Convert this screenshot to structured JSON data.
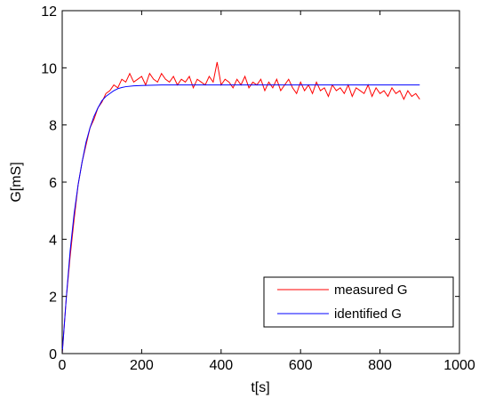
{
  "chart_data": {
    "type": "line",
    "title": "",
    "xlabel": "t[s]",
    "ylabel": "G[mS]",
    "xlim": [
      0,
      1000
    ],
    "ylim": [
      0,
      12
    ],
    "xticks": [
      0,
      200,
      400,
      600,
      800,
      1000
    ],
    "yticks": [
      0,
      2,
      4,
      6,
      8,
      10,
      12
    ],
    "grid": false,
    "legend_position": "bottom-right",
    "series": [
      {
        "name": "measured G",
        "color": "#ff0000",
        "x": [
          0,
          10,
          20,
          30,
          40,
          50,
          60,
          70,
          80,
          90,
          100,
          110,
          120,
          130,
          140,
          150,
          160,
          170,
          180,
          190,
          200,
          210,
          220,
          230,
          240,
          250,
          260,
          270,
          280,
          290,
          300,
          310,
          320,
          330,
          340,
          350,
          360,
          370,
          380,
          390,
          400,
          410,
          420,
          430,
          440,
          450,
          460,
          470,
          480,
          490,
          500,
          510,
          520,
          530,
          540,
          550,
          560,
          570,
          580,
          590,
          600,
          610,
          620,
          630,
          640,
          650,
          660,
          670,
          680,
          690,
          700,
          710,
          720,
          730,
          740,
          750,
          760,
          770,
          780,
          790,
          800,
          810,
          820,
          830,
          840,
          850,
          860,
          870,
          880,
          890,
          900
        ],
        "y": [
          0,
          1.9,
          3.4,
          4.7,
          5.9,
          6.7,
          7.3,
          7.9,
          8.2,
          8.6,
          8.8,
          9.1,
          9.2,
          9.4,
          9.3,
          9.6,
          9.5,
          9.8,
          9.5,
          9.6,
          9.7,
          9.4,
          9.8,
          9.6,
          9.5,
          9.8,
          9.6,
          9.5,
          9.7,
          9.4,
          9.6,
          9.5,
          9.7,
          9.3,
          9.6,
          9.5,
          9.4,
          9.7,
          9.5,
          10.2,
          9.4,
          9.6,
          9.5,
          9.3,
          9.6,
          9.4,
          9.7,
          9.3,
          9.5,
          9.4,
          9.6,
          9.2,
          9.5,
          9.3,
          9.6,
          9.2,
          9.4,
          9.6,
          9.3,
          9.1,
          9.5,
          9.2,
          9.4,
          9.1,
          9.5,
          9.2,
          9.3,
          9.0,
          9.4,
          9.2,
          9.3,
          9.1,
          9.4,
          9.0,
          9.3,
          9.2,
          9.1,
          9.4,
          9.0,
          9.3,
          9.1,
          9.2,
          9.0,
          9.3,
          9.1,
          9.2,
          8.9,
          9.2,
          9.0,
          9.1,
          8.9
        ]
      },
      {
        "name": "identified G",
        "color": "#0000ff",
        "x": [
          0,
          10,
          20,
          30,
          40,
          50,
          60,
          70,
          80,
          90,
          100,
          110,
          120,
          130,
          140,
          150,
          160,
          180,
          200,
          250,
          300,
          400,
          500,
          600,
          700,
          800,
          900
        ],
        "y": [
          0,
          1.9,
          3.6,
          4.9,
          5.9,
          6.7,
          7.4,
          7.9,
          8.3,
          8.6,
          8.85,
          9.0,
          9.1,
          9.2,
          9.27,
          9.31,
          9.34,
          9.37,
          9.38,
          9.4,
          9.4,
          9.4,
          9.4,
          9.4,
          9.4,
          9.4,
          9.4
        ]
      }
    ]
  }
}
